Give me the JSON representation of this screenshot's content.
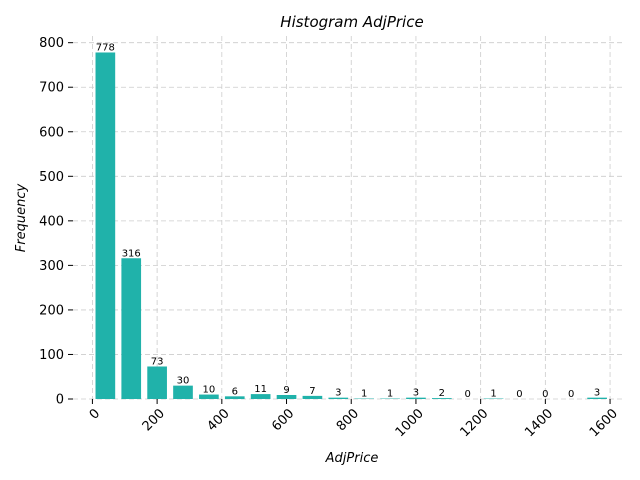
{
  "chart_data": {
    "type": "bar",
    "title": "Histogram AdjPrice",
    "xlabel": "AdjPrice",
    "ylabel": "Frequency",
    "bin_width": 80,
    "bin_starts": [
      0,
      80,
      160,
      240,
      320,
      400,
      480,
      560,
      640,
      720,
      800,
      880,
      960,
      1040,
      1120,
      1200,
      1280,
      1360,
      1440,
      1520
    ],
    "values": [
      778,
      316,
      73,
      30,
      10,
      6,
      11,
      9,
      7,
      3,
      1,
      1,
      3,
      2,
      0,
      1,
      0,
      0,
      0,
      3
    ],
    "xlim": [
      -60,
      1640
    ],
    "ylim": [
      0,
      815
    ],
    "xticks": [
      0,
      200,
      400,
      600,
      800,
      1000,
      1200,
      1400,
      1600
    ],
    "yticks": [
      0,
      100,
      200,
      300,
      400,
      500,
      600,
      700,
      800
    ],
    "grid": true,
    "bar_color": "#20b2aa"
  }
}
